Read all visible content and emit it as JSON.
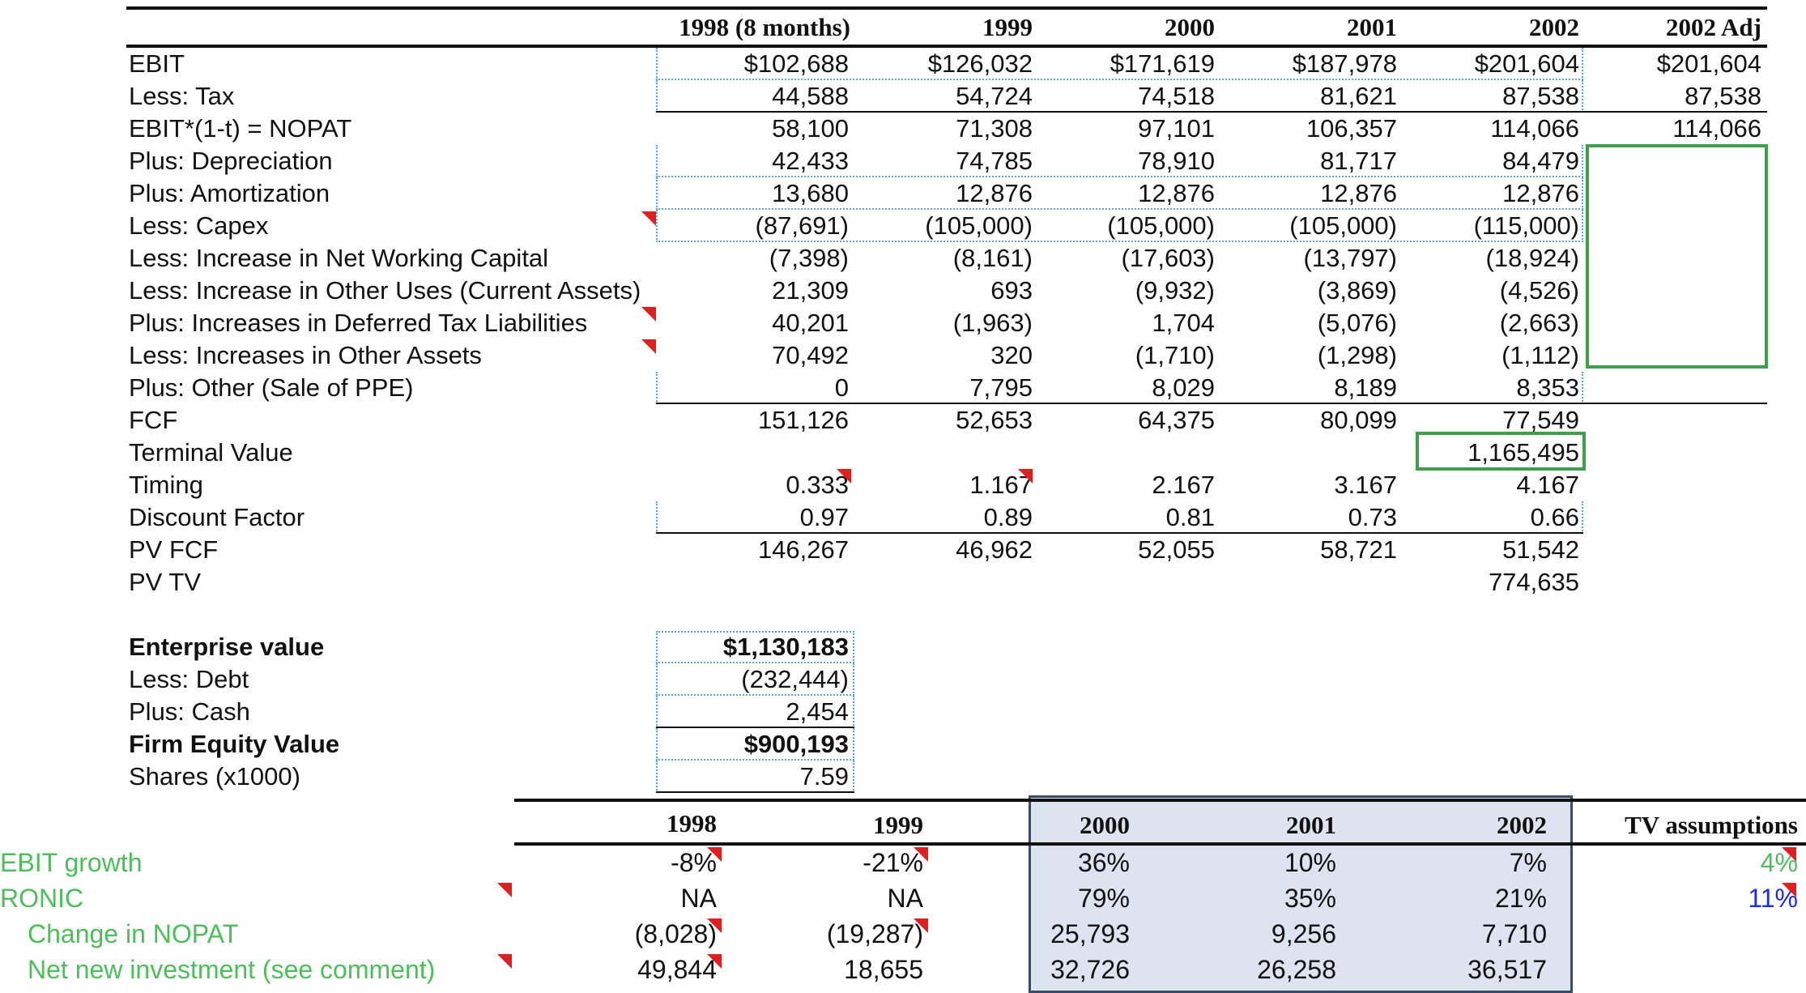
{
  "upper_table": {
    "columns": [
      "1998 (8 months)",
      "1999",
      "2000",
      "2001",
      "2002",
      "2002 Adj"
    ],
    "rows": [
      {
        "label": "EBIT",
        "values": [
          "$102,688",
          "$126,032",
          "$171,619",
          "$187,978",
          "$201,604",
          "$201,604"
        ]
      },
      {
        "label": "Less: Tax",
        "values": [
          "44,588",
          "54,724",
          "74,518",
          "81,621",
          "87,538",
          "87,538"
        ]
      },
      {
        "label": "EBIT*(1-t) = NOPAT",
        "values": [
          "58,100",
          "71,308",
          "97,101",
          "106,357",
          "114,066",
          "114,066"
        ]
      },
      {
        "label": "Plus: Depreciation",
        "values": [
          "42,433",
          "74,785",
          "78,910",
          "81,717",
          "84,479",
          ""
        ]
      },
      {
        "label": "Plus: Amortization",
        "values": [
          "13,680",
          "12,876",
          "12,876",
          "12,876",
          "12,876",
          ""
        ]
      },
      {
        "label": "Less: Capex",
        "values": [
          "(87,691)",
          "(105,000)",
          "(105,000)",
          "(105,000)",
          "(115,000)",
          ""
        ]
      },
      {
        "label": "Less: Increase in Net Working Capital",
        "values": [
          "(7,398)",
          "(8,161)",
          "(17,603)",
          "(13,797)",
          "(18,924)",
          ""
        ]
      },
      {
        "label": "Less: Increase in Other Uses (Current Assets)",
        "values": [
          "21,309",
          "693",
          "(9,932)",
          "(3,869)",
          "(4,526)",
          ""
        ]
      },
      {
        "label": "Plus: Increases in Deferred Tax Liabilities",
        "values": [
          "40,201",
          "(1,963)",
          "1,704",
          "(5,076)",
          "(2,663)",
          ""
        ]
      },
      {
        "label": "Less: Increases in Other Assets",
        "values": [
          "70,492",
          "320",
          "(1,710)",
          "(1,298)",
          "(1,112)",
          ""
        ]
      },
      {
        "label": "Plus: Other (Sale of PPE)",
        "values": [
          "0",
          "7,795",
          "8,029",
          "8,189",
          "8,353",
          ""
        ]
      },
      {
        "label": "FCF",
        "values": [
          "151,126",
          "52,653",
          "64,375",
          "80,099",
          "77,549",
          ""
        ]
      },
      {
        "label": "Terminal Value",
        "values": [
          "",
          "",
          "",
          "",
          "1,165,495",
          ""
        ]
      },
      {
        "label": "Timing",
        "values": [
          "0.333",
          "1.167",
          "2.167",
          "3.167",
          "4.167",
          ""
        ]
      },
      {
        "label": "Discount Factor",
        "values": [
          "0.97",
          "0.89",
          "0.81",
          "0.73",
          "0.66",
          ""
        ]
      },
      {
        "label": "PV FCF",
        "values": [
          "146,267",
          "46,962",
          "52,055",
          "58,721",
          "51,542",
          ""
        ]
      },
      {
        "label": "PV TV",
        "values": [
          "",
          "",
          "",
          "",
          "774,635",
          ""
        ]
      }
    ]
  },
  "valuation": {
    "rows": [
      {
        "label": "Enterprise value",
        "value": "$1,130,183",
        "bold": true
      },
      {
        "label": "Less: Debt",
        "value": "(232,444)",
        "bold": false
      },
      {
        "label": "Plus: Cash",
        "value": "2,454",
        "bold": false
      },
      {
        "label": "Firm Equity Value",
        "value": "$900,193",
        "bold": true
      },
      {
        "label": "Shares (x1000)",
        "value": "7.59",
        "bold": false
      }
    ]
  },
  "lower_table": {
    "columns": [
      "1998",
      "1999",
      "2000",
      "2001",
      "2002",
      "TV assumptions"
    ],
    "rows": [
      {
        "label": "EBIT growth",
        "values": [
          "-8%",
          "-21%",
          "36%",
          "10%",
          "7%",
          "4%"
        ]
      },
      {
        "label": "RONIC",
        "values": [
          "NA",
          "NA",
          "79%",
          "35%",
          "21%",
          "11%"
        ]
      },
      {
        "label": "Change in NOPAT",
        "values": [
          "(8,028)",
          "(19,287)",
          "25,793",
          "9,256",
          "7,710",
          ""
        ]
      },
      {
        "label": "Net new investment (see comment)",
        "values": [
          "49,844",
          "18,655",
          "32,726",
          "26,258",
          "36,517",
          ""
        ]
      }
    ]
  },
  "colors": {
    "green_label": "#4dbf5a",
    "highlight_border": "#3ea04a",
    "comment_marker": "#e02020",
    "panel_fill": "#dde3ef",
    "tv_blue": "#1a2ee0"
  }
}
